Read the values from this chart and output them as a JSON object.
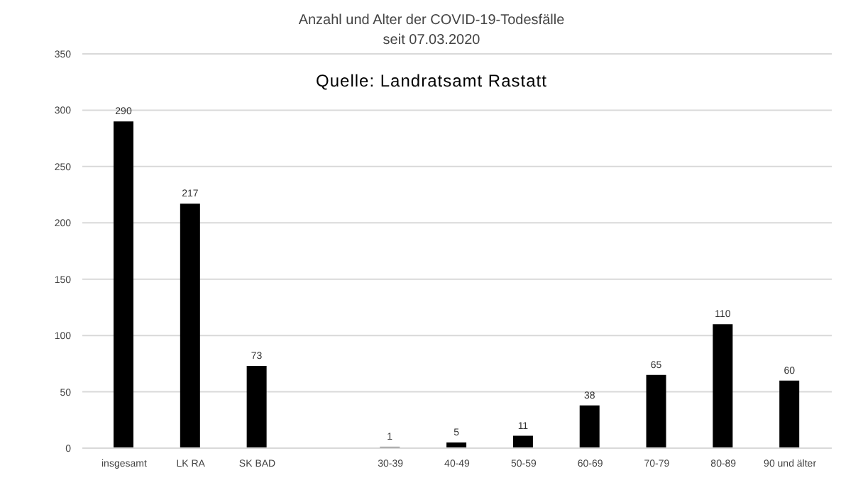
{
  "chart_data": {
    "type": "bar",
    "title": "Anzahl und Alter der COVID-19-Todesfälle",
    "subtitle": "seit 07.03.2020",
    "annotations": [
      "Quelle: Landratsamt Rastatt"
    ],
    "categories": [
      "insgesamt",
      "LK RA",
      "SK BAD",
      null,
      "30-39",
      "40-49",
      "50-59",
      "60-69",
      "70-79",
      "80-89",
      "90 und älter"
    ],
    "values": [
      290,
      217,
      73,
      null,
      1,
      5,
      11,
      38,
      65,
      110,
      60
    ],
    "color": "#000000",
    "ylim": [
      0,
      350
    ],
    "yticks": [
      0,
      50,
      100,
      150,
      200,
      250,
      300,
      350
    ],
    "grid": "y",
    "data_labels": true
  }
}
